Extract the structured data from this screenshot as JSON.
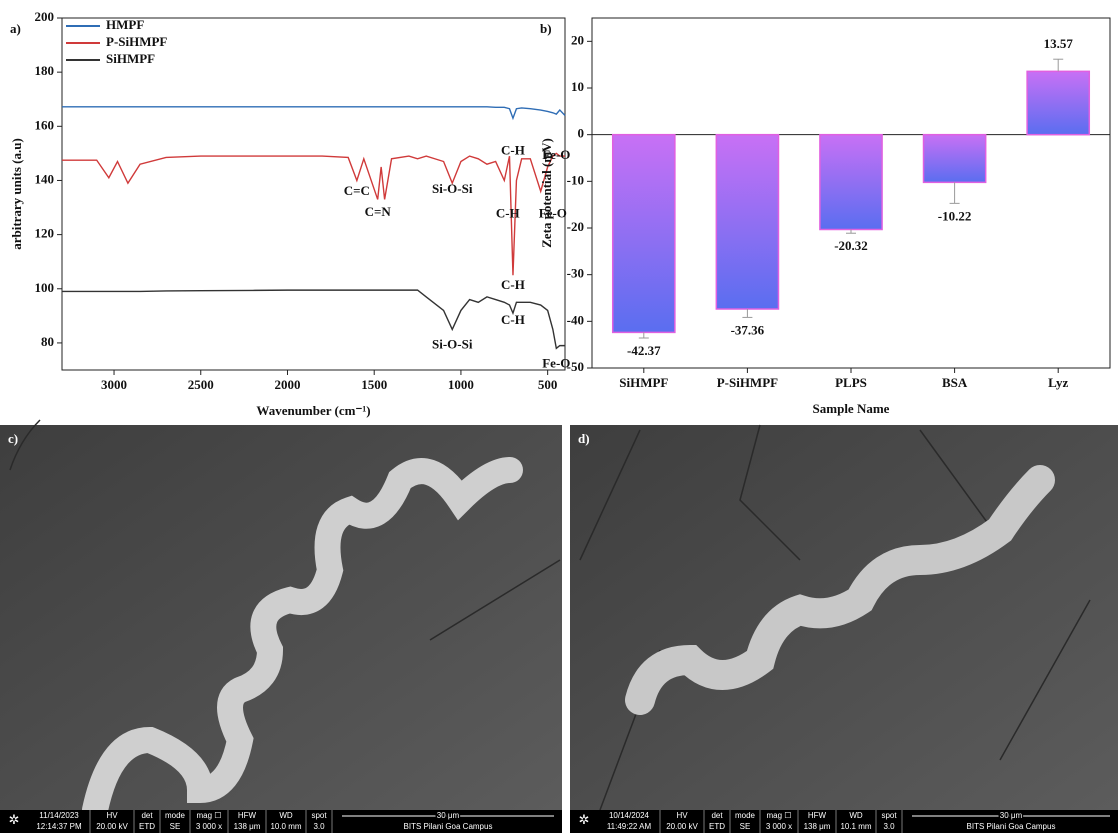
{
  "chart_data": [
    {
      "type": "line",
      "label": "a)",
      "x_label": "Wavenumber (cm⁻¹)",
      "y_label": "arbitrary units (a.u)",
      "xlim": [
        3300,
        400
      ],
      "xticks": [
        3000,
        2500,
        2000,
        1500,
        1000,
        500
      ],
      "ylim": [
        70,
        200
      ],
      "yticks": [
        80,
        100,
        120,
        140,
        160,
        180,
        200
      ],
      "legend": "upper-left",
      "x": [
        3300,
        3100,
        3030,
        2980,
        2920,
        2850,
        2700,
        2500,
        2200,
        2000,
        1800,
        1650,
        1600,
        1560,
        1480,
        1460,
        1440,
        1400,
        1300,
        1250,
        1200,
        1100,
        1050,
        1000,
        950,
        900,
        850,
        800,
        750,
        720,
        700,
        680,
        650,
        600,
        540,
        500,
        470,
        450,
        430,
        400
      ],
      "series": [
        {
          "name": "HMPF",
          "color": "#2f6db5",
          "values": [
            167.2,
            167.2,
            167.2,
            167.2,
            167.2,
            167.2,
            167.2,
            167.2,
            167.2,
            167.2,
            167.2,
            167.2,
            167.2,
            167.2,
            167.2,
            167.2,
            167.2,
            167.2,
            167.2,
            167.2,
            167.2,
            167.2,
            167.2,
            167.2,
            167.2,
            167.2,
            167.2,
            167,
            167,
            166.5,
            163,
            166.5,
            166.8,
            166.5,
            166,
            165.5,
            165,
            164.5,
            166,
            164
          ]
        },
        {
          "name": "P-SiHMPF",
          "color": "#d03a3a",
          "values": [
            147.5,
            147.5,
            141,
            147,
            139,
            146,
            148.5,
            149,
            149,
            149,
            149,
            148.5,
            140,
            148,
            133,
            145,
            133,
            148,
            149,
            148,
            149,
            147,
            139,
            147,
            149,
            148,
            146,
            147,
            140,
            149,
            105,
            140,
            148,
            148,
            136,
            145,
            149,
            150,
            149,
            149
          ]
        },
        {
          "name": "SiHMPF",
          "color": "#333333",
          "values": [
            99,
            99,
            99,
            99,
            99,
            99,
            99.2,
            99.3,
            99.4,
            99.5,
            99.5,
            99.5,
            99.5,
            99.5,
            99.5,
            99.5,
            99.5,
            99.5,
            99.5,
            99.5,
            97,
            92,
            85,
            92,
            96,
            95,
            97,
            96,
            95,
            94,
            91,
            95,
            95,
            95,
            94,
            92,
            85,
            78,
            79,
            79
          ]
        }
      ],
      "annotations": [
        {
          "text": "C=C",
          "x": 1600,
          "y": 135.7
        },
        {
          "text": "C=N",
          "x": 1480,
          "y": 128
        },
        {
          "text": "Si-O-Si",
          "x": 1050,
          "y": 136.4
        },
        {
          "text": "C-H",
          "x": 730,
          "y": 127.5
        },
        {
          "text": "Fe-O",
          "x": 470,
          "y": 127.5
        },
        {
          "text": "C-H",
          "x": 700,
          "y": 150.6
        },
        {
          "text": "Fe-O",
          "x": 450,
          "y": 149
        },
        {
          "text": "C-H",
          "x": 700,
          "y": 101
        },
        {
          "text": "C-H",
          "x": 700,
          "y": 88
        },
        {
          "text": "Si-O-Si",
          "x": 1050,
          "y": 79
        },
        {
          "text": "Fe-O",
          "x": 450,
          "y": 72
        }
      ]
    },
    {
      "type": "bar",
      "label": "b)",
      "x_label": "Sample Name",
      "y_label": "Zeta potential (mV)",
      "categories": [
        "SiHMPF",
        "P-SiHMPF",
        "PLPS",
        "BSA",
        "Lyz"
      ],
      "values": [
        -42.37,
        -37.36,
        -20.32,
        -10.22,
        13.57
      ],
      "errors": [
        1.2,
        1.8,
        0.8,
        4.5,
        2.6
      ],
      "colors": [
        "#c870f5",
        "#5a6ef0"
      ],
      "edge_color": "#e060e0",
      "ylim": [
        -50,
        25
      ],
      "yticks": [
        -50,
        -40,
        -30,
        -20,
        -10,
        0,
        10,
        20
      ]
    }
  ],
  "images": [
    {
      "label": "c)",
      "info": [
        [
          "11/14/2023",
          "12:14:37 PM"
        ],
        [
          "HV",
          "20.00 kV"
        ],
        [
          "det",
          "ETD"
        ],
        [
          "mode",
          "SE"
        ],
        [
          "mag ☐",
          "3 000 x"
        ],
        [
          "HFW",
          "138 μm"
        ],
        [
          "WD",
          "10.0 mm"
        ],
        [
          "spot",
          "3.0"
        ]
      ],
      "scale_bar": "30 μm",
      "institution": "BITS Pilani Goa Campus"
    },
    {
      "label": "d)",
      "info": [
        [
          "10/14/2024",
          "11:49:22 AM"
        ],
        [
          "HV",
          "20.00 kV"
        ],
        [
          "det",
          "ETD"
        ],
        [
          "mode",
          "SE"
        ],
        [
          "mag ☐",
          "3 000 x"
        ],
        [
          "HFW",
          "138 μm"
        ],
        [
          "WD",
          "10.1 mm"
        ],
        [
          "spot",
          "3.0"
        ]
      ],
      "scale_bar": "30 μm",
      "institution": "BITS Pilani Goa Campus"
    }
  ]
}
